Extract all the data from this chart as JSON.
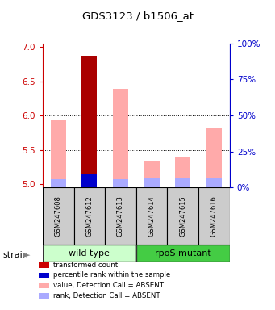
{
  "title": "GDS3123 / b1506_at",
  "samples": [
    "GSM247608",
    "GSM247612",
    "GSM247613",
    "GSM247614",
    "GSM247615",
    "GSM247616"
  ],
  "ylim_left": [
    4.95,
    7.05
  ],
  "ylim_right": [
    0,
    100
  ],
  "yticks_left": [
    5.0,
    5.5,
    6.0,
    6.5,
    7.0
  ],
  "yticks_right": [
    0,
    25,
    50,
    75,
    100
  ],
  "dotted_lines": [
    5.5,
    6.0,
    6.5
  ],
  "value_bars": [
    5.93,
    6.87,
    6.39,
    5.34,
    5.39,
    5.82
  ],
  "rank_bars_top": [
    5.07,
    5.14,
    5.07,
    5.08,
    5.08,
    5.09
  ],
  "is_present": [
    false,
    true,
    false,
    false,
    false,
    false
  ],
  "bar_width": 0.5,
  "value_color_absent": "#ffaaaa",
  "value_color_present": "#aa0000",
  "rank_color_absent": "#aaaaff",
  "rank_color_present": "#0000cc",
  "left_axis_color": "#cc0000",
  "right_axis_color": "#0000cc",
  "background_color": "#ffffff",
  "sample_box_color": "#cccccc",
  "wt_color": "#ccffcc",
  "mut_color": "#44cc44",
  "legend_items": [
    {
      "color": "#cc0000",
      "label": "transformed count"
    },
    {
      "color": "#0000cc",
      "label": "percentile rank within the sample"
    },
    {
      "color": "#ffaaaa",
      "label": "value, Detection Call = ABSENT"
    },
    {
      "color": "#aaaaff",
      "label": "rank, Detection Call = ABSENT"
    }
  ]
}
